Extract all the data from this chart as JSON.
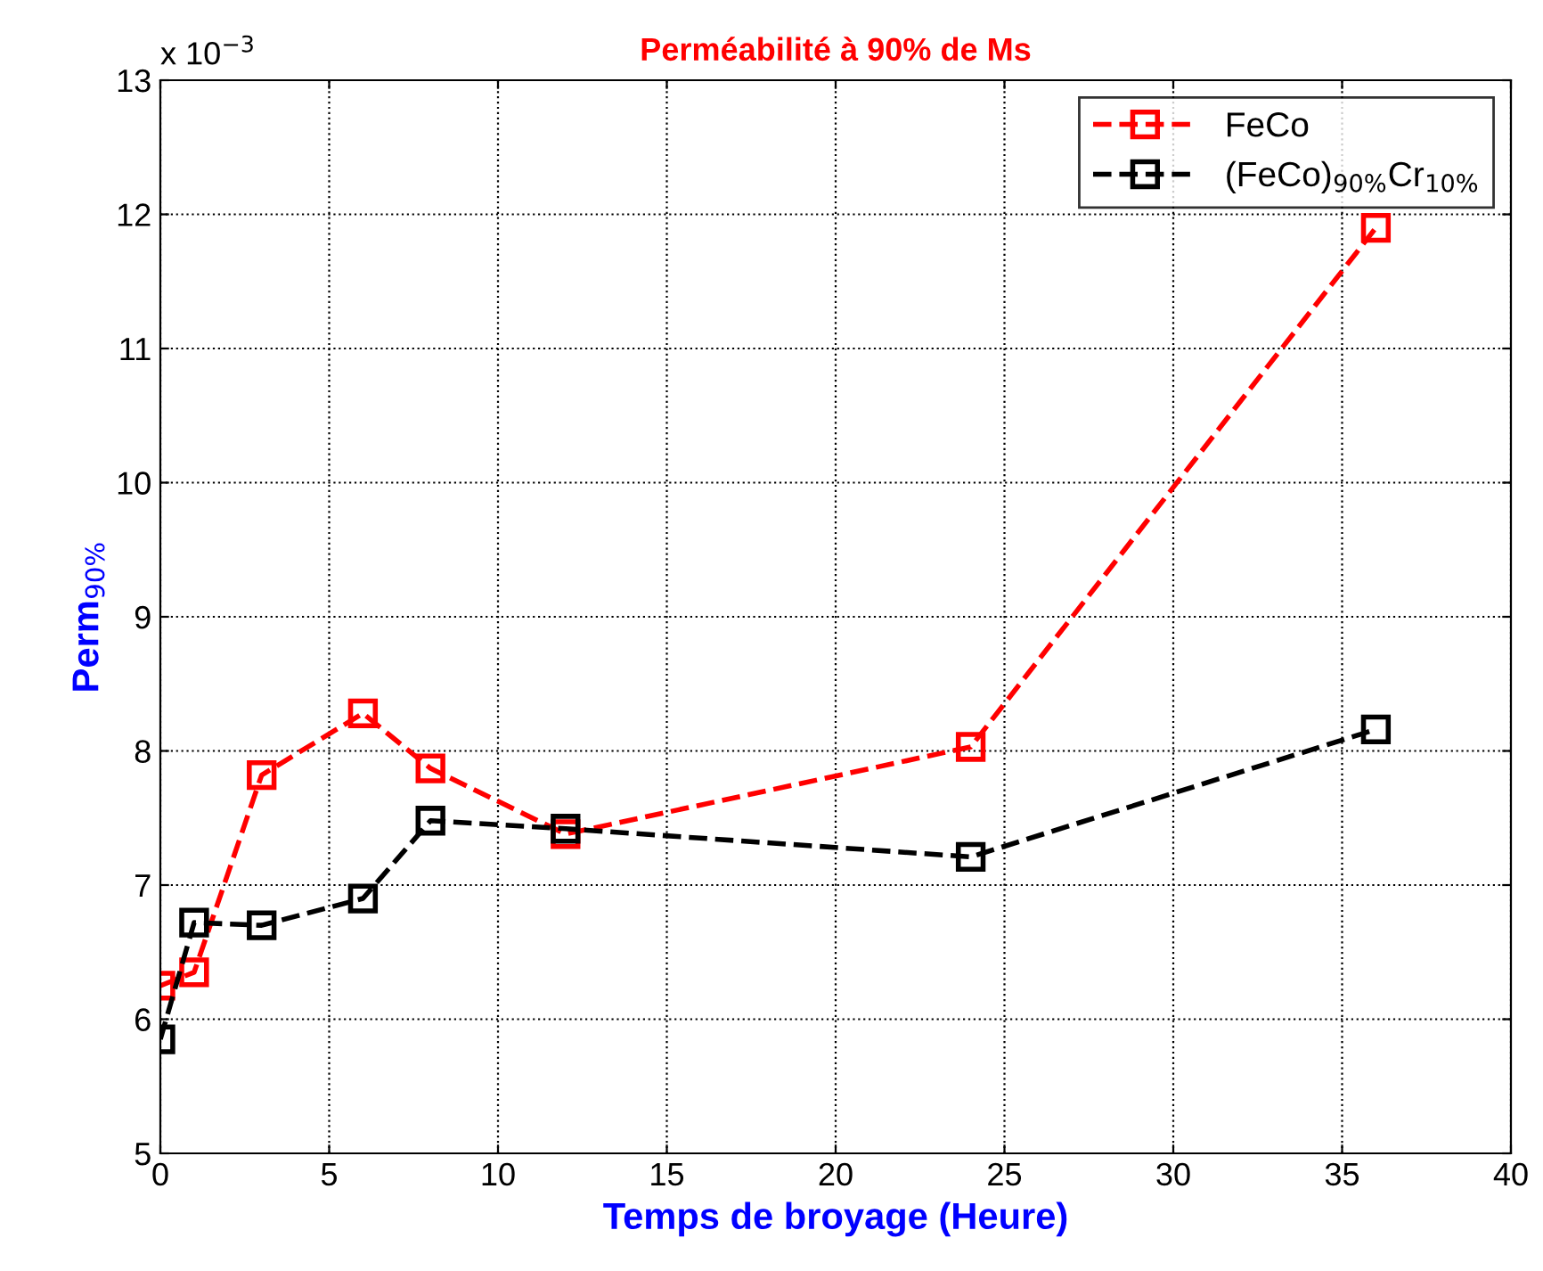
{
  "chart_data": {
    "type": "line",
    "title": "Perméabilité à 90% de Ms",
    "xlabel": "Temps de broyage (Heure)",
    "ylabel": "Perm$_{90%}$",
    "annotations": [
      "x 10$^{−3}$"
    ],
    "x": [
      0,
      1,
      3,
      6,
      8,
      12,
      24,
      36
    ],
    "series": [
      {
        "name": "FeCo",
        "color": "#ff0000",
        "values": [
          6.25,
          6.35,
          7.82,
          8.28,
          7.87,
          7.38,
          8.03,
          11.9
        ]
      },
      {
        "name": "(FeCo)$_{90%}$Cr$_{10%}$",
        "color": "#000000",
        "values": [
          5.85,
          6.72,
          6.7,
          6.9,
          7.48,
          7.42,
          7.21,
          8.16
        ]
      }
    ],
    "xlim": [
      0,
      40
    ],
    "xticks": [
      0,
      5,
      10,
      15,
      20,
      25,
      30,
      35,
      40
    ],
    "ylim": [
      5,
      13
    ],
    "yticks": [
      5,
      6,
      7,
      8,
      9,
      10,
      11,
      12,
      13
    ],
    "grid": true,
    "legend": "top right",
    "marker": "square",
    "line_style": "dashed"
  }
}
